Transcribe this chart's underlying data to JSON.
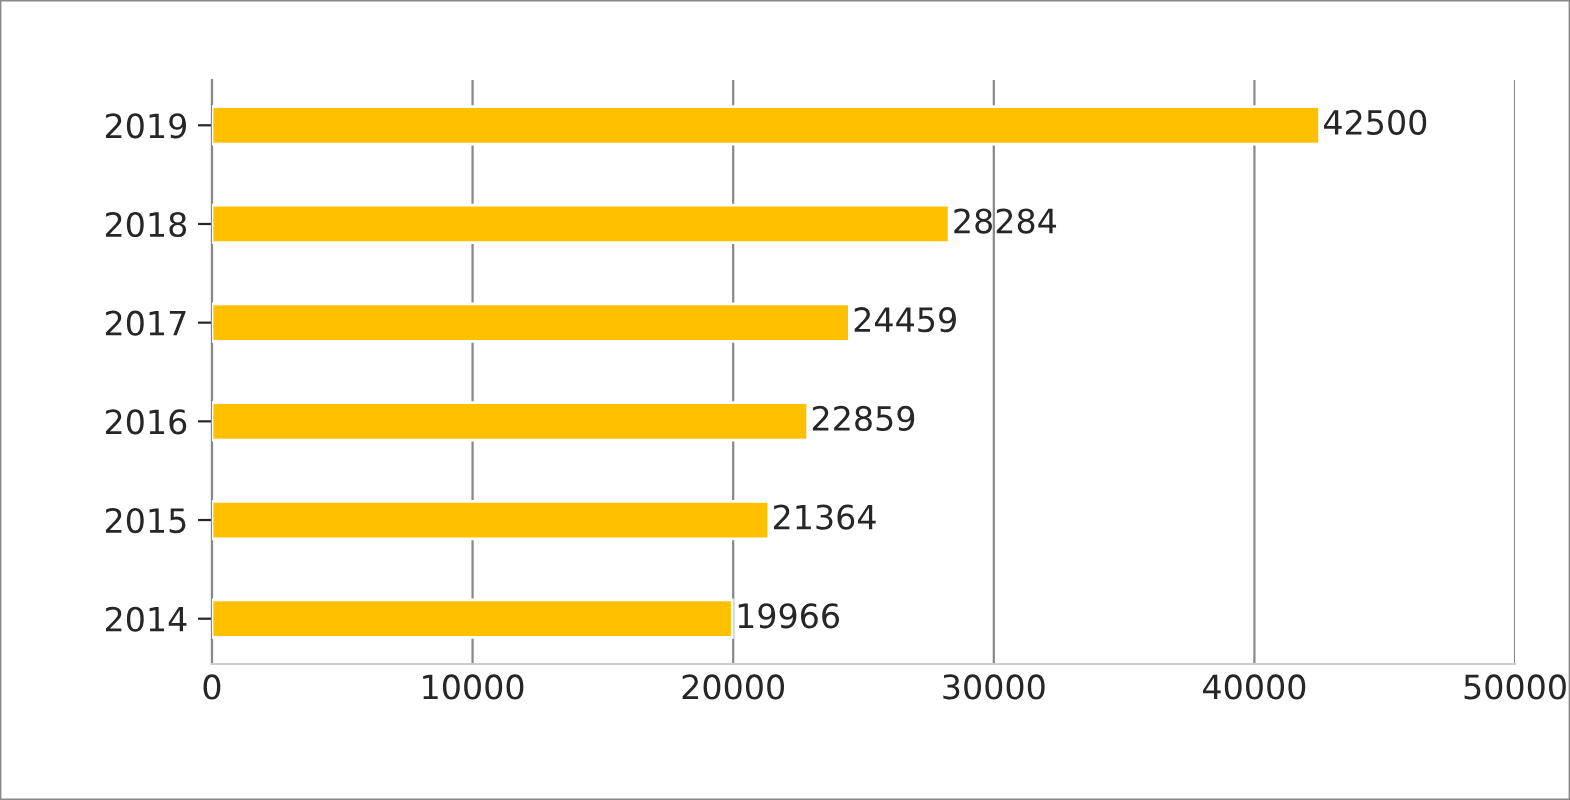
{
  "chart_data": {
    "type": "bar",
    "orientation": "horizontal",
    "categories": [
      "2019",
      "2018",
      "2017",
      "2016",
      "2015",
      "2014"
    ],
    "values": [
      42500,
      28284,
      24459,
      22859,
      21364,
      19966
    ],
    "color": "#ffc000",
    "xlim": [
      0,
      50000
    ],
    "xticks": [
      0,
      10000,
      20000,
      30000,
      40000,
      50000
    ],
    "grid": "x",
    "data_labels": true,
    "legend": false
  }
}
